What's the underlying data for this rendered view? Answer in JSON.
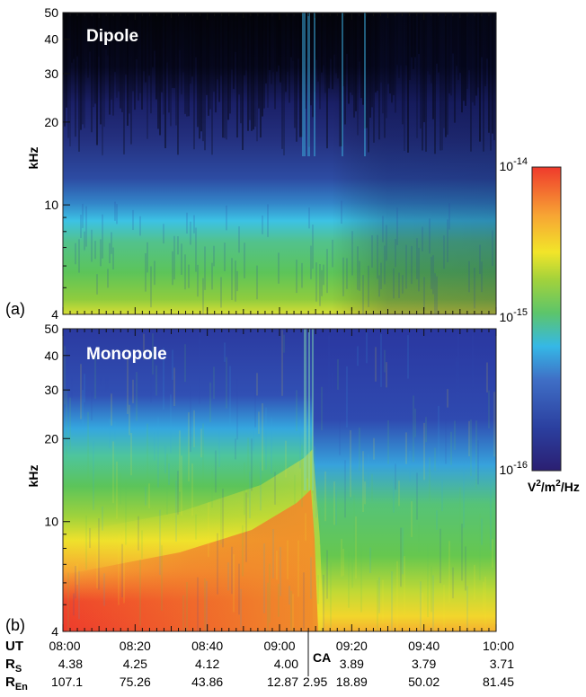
{
  "chart_data": [
    {
      "type": "heatmap",
      "panel_label": "(a)",
      "title": "Dipole",
      "ylabel": "kHz",
      "y_scale": "log",
      "ylim_khz": [
        4,
        50
      ],
      "y_ticks": [
        "4",
        "10",
        "20",
        "30",
        "40",
        "50"
      ],
      "xlim_ut": [
        "08:00",
        "10:00"
      ],
      "closest_approach_ut": "09:05",
      "description_levels": [
        {
          "freq_khz": 4,
          "level": "yellow-green"
        },
        {
          "freq_khz": 6,
          "level": "green"
        },
        {
          "freq_khz": 9,
          "level": "cyan"
        },
        {
          "freq_khz": 13,
          "level": "blue"
        },
        {
          "freq_khz": 20,
          "level": "dark blue"
        },
        {
          "freq_khz": 50,
          "level": "black"
        }
      ]
    },
    {
      "type": "heatmap",
      "panel_label": "(b)",
      "title": "Monopole",
      "ylabel": "kHz",
      "y_scale": "log",
      "ylim_khz": [
        4,
        50
      ],
      "y_ticks": [
        "4",
        "10",
        "20",
        "30",
        "40",
        "50"
      ],
      "xlim_ut": [
        "08:00",
        "10:00"
      ],
      "closest_approach_ut": "09:05",
      "description_levels": [
        {
          "freq_khz": 4,
          "level": "red"
        },
        {
          "freq_khz": 7,
          "level": "yellow"
        },
        {
          "freq_khz": 12,
          "level": "green"
        },
        {
          "freq_khz": 20,
          "level": "cyan"
        },
        {
          "freq_khz": 50,
          "level": "blue"
        }
      ]
    }
  ],
  "colorbar": {
    "scale": "log",
    "min_label": {
      "base": "10",
      "exp": "-16"
    },
    "mid_label": {
      "base": "10",
      "exp": "-15"
    },
    "max_label": {
      "base": "10",
      "exp": "-14"
    },
    "unit": {
      "v": "V",
      "e1": "2",
      "m": "/m",
      "e2": "2",
      "rest": "/Hz"
    },
    "colors": [
      "#2b1f72",
      "#2b3f9f",
      "#3f6fc6",
      "#35b8e6",
      "#5dc56a",
      "#a3d23b",
      "#f2e529",
      "#f7a534",
      "#ef3a2c"
    ]
  },
  "x_axis": {
    "rows": [
      {
        "key": "UT",
        "label_main": "UT",
        "label_sub": "",
        "values": [
          "08:00",
          "08:20",
          "08:40",
          "09:00",
          "09:20",
          "09:40",
          "10:00"
        ]
      },
      {
        "key": "RS",
        "label_main": "R",
        "label_sub": "S",
        "values": [
          "4.38",
          "4.25",
          "4.12",
          "4.00",
          "3.89",
          "3.79",
          "3.71"
        ]
      },
      {
        "key": "REn",
        "label_main": "R",
        "label_sub": "En",
        "values": [
          "107.1",
          "75.26",
          "43.86",
          "12.87",
          "18.89",
          "50.02",
          "81.45"
        ]
      }
    ],
    "ca_label": "CA",
    "ca_value": "2.95"
  }
}
